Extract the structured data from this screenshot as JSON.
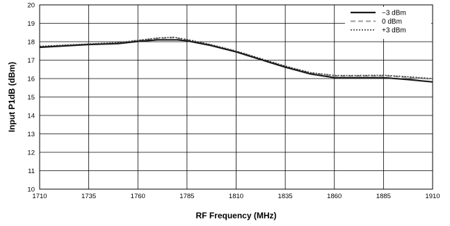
{
  "chart_data": {
    "type": "line",
    "title": "",
    "xlabel": "RF Frequency (MHz)",
    "ylabel": "Input P1dB (dBm)",
    "xlim": [
      1710,
      1910
    ],
    "ylim": [
      10,
      20
    ],
    "xticks": [
      "1710",
      "1735",
      "1760",
      "1785",
      "1810",
      "1835",
      "1860",
      "1885",
      "1910"
    ],
    "yticks": [
      "10",
      "11",
      "12",
      "13",
      "14",
      "15",
      "16",
      "17",
      "18",
      "19",
      "20"
    ],
    "grid": true,
    "legend_position": "top-right",
    "series": [
      {
        "name": "−3 dBm",
        "style": "solid",
        "color": "#1a1a1a",
        "x": [
          1710,
          1735,
          1750,
          1760,
          1770,
          1780,
          1785,
          1797,
          1810,
          1822,
          1835,
          1848,
          1860,
          1872,
          1885,
          1897,
          1910
        ],
        "y": [
          17.7,
          17.85,
          17.9,
          18.02,
          18.1,
          18.1,
          18.05,
          17.8,
          17.45,
          17.05,
          16.62,
          16.25,
          16.05,
          16.05,
          16.05,
          15.95,
          15.82
        ]
      },
      {
        "name": "0 dBm",
        "style": "dashed",
        "color": "#9a9a9a",
        "x": [
          1710,
          1735,
          1750,
          1760,
          1770,
          1778,
          1785,
          1797,
          1810,
          1822,
          1835,
          1848,
          1860,
          1872,
          1885,
          1897,
          1910
        ],
        "y": [
          17.72,
          17.86,
          17.93,
          18.06,
          18.18,
          18.22,
          18.1,
          17.82,
          17.47,
          17.07,
          16.65,
          16.3,
          16.15,
          16.15,
          16.15,
          16.07,
          15.97
        ]
      },
      {
        "name": "+3 dBm",
        "style": "dotted",
        "color": "#333333",
        "x": [
          1710,
          1735,
          1750,
          1760,
          1770,
          1778,
          1785,
          1797,
          1810,
          1822,
          1835,
          1848,
          1860,
          1872,
          1885,
          1897,
          1910
        ],
        "y": [
          17.75,
          17.88,
          17.95,
          18.08,
          18.2,
          18.25,
          18.12,
          17.85,
          17.5,
          17.1,
          16.68,
          16.32,
          16.17,
          16.17,
          16.18,
          16.1,
          16.0
        ]
      }
    ]
  }
}
